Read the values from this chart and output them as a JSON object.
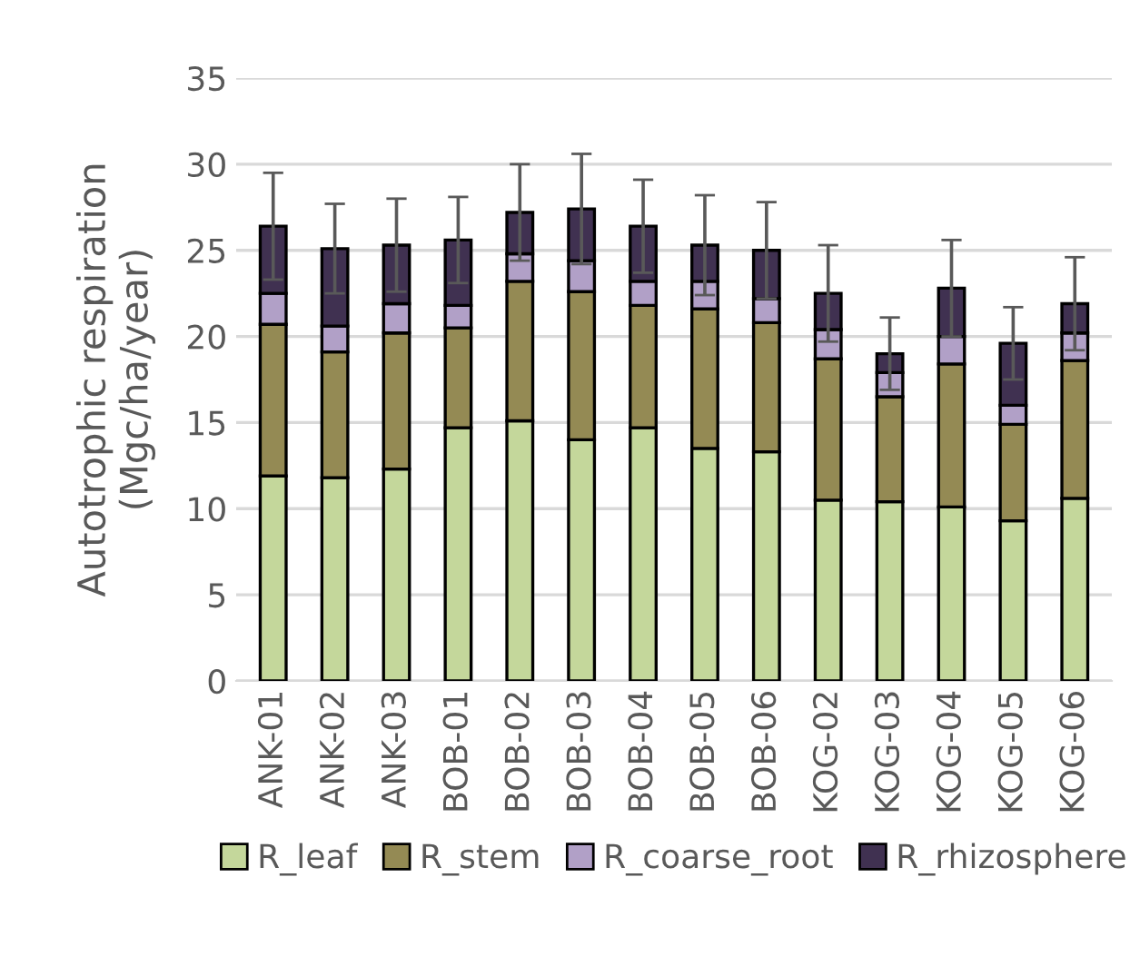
{
  "chart_data": {
    "type": "bar",
    "stacked": true,
    "ylabel": "Autotrophic respiration\n(Mgc/ha/year)",
    "categories": [
      "ANK-01",
      "ANK-02",
      "ANK-03",
      "BOB-01",
      "BOB-02",
      "BOB-03",
      "BOB-04",
      "BOB-05",
      "BOB-06",
      "KOG-02",
      "KOG-03",
      "KOG-04",
      "KOG-05",
      "KOG-06"
    ],
    "series": [
      {
        "name": "R_leaf",
        "color": "#c4d79b",
        "values": [
          11.9,
          11.8,
          12.3,
          14.7,
          15.1,
          14.0,
          14.7,
          13.5,
          13.3,
          10.5,
          10.4,
          10.1,
          9.3,
          10.6
        ]
      },
      {
        "name": "R_stem",
        "color": "#948a54",
        "values": [
          8.8,
          7.3,
          7.9,
          5.8,
          8.1,
          8.6,
          7.1,
          8.1,
          7.5,
          8.2,
          6.1,
          8.3,
          5.6,
          8.0
        ]
      },
      {
        "name": "R_coarse_root",
        "color": "#b1a0c7",
        "values": [
          1.8,
          1.5,
          1.7,
          1.3,
          1.6,
          1.8,
          1.4,
          1.6,
          1.4,
          1.7,
          1.4,
          1.6,
          1.1,
          1.6
        ]
      },
      {
        "name": "R_rhizosphere",
        "color": "#403151",
        "values": [
          3.9,
          4.5,
          3.4,
          3.8,
          2.4,
          3.0,
          3.2,
          2.1,
          2.8,
          2.1,
          1.1,
          2.8,
          3.6,
          1.7
        ],
        "errors": [
          3.1,
          2.6,
          2.7,
          2.5,
          2.8,
          3.2,
          2.7,
          2.9,
          2.8,
          2.8,
          2.1,
          2.8,
          2.1,
          2.7
        ]
      }
    ],
    "ylim": [
      0,
      35
    ],
    "yticks": [
      0,
      5,
      10,
      15,
      20,
      25,
      30,
      35
    ],
    "grid": "y",
    "legend": "bottom"
  }
}
